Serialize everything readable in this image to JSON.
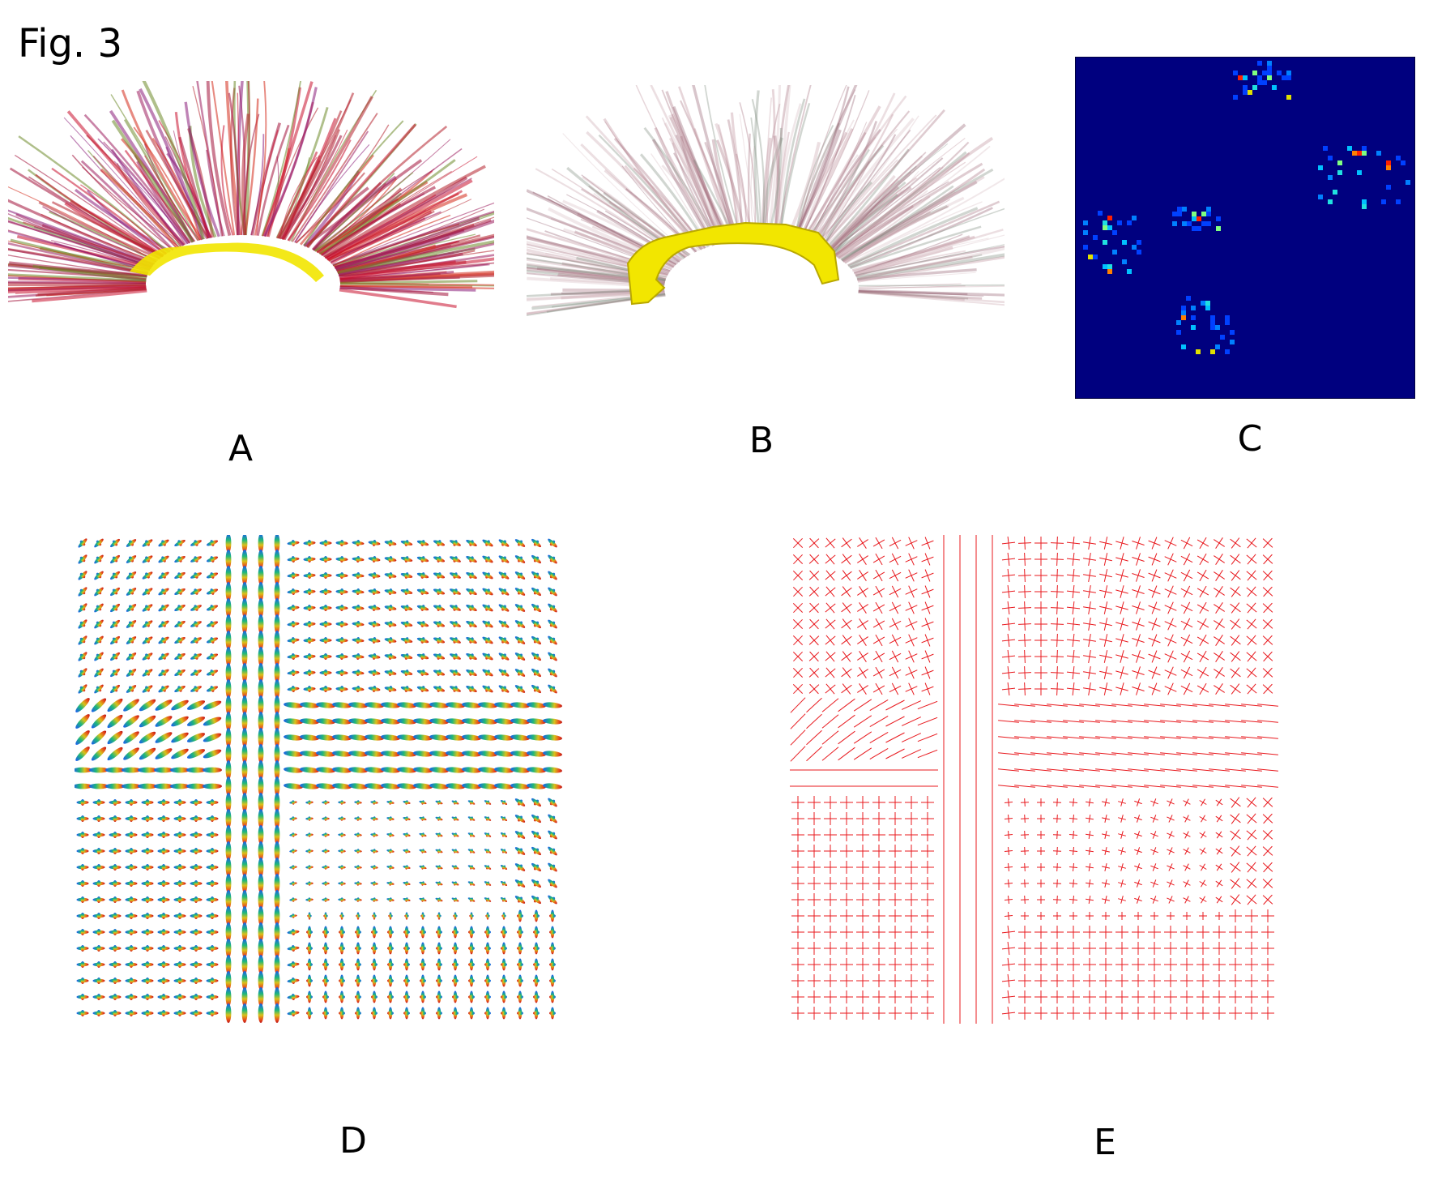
{
  "figure": {
    "title": "Fig. 3",
    "panel_labels": {
      "a": "A",
      "b": "B",
      "c": "C",
      "d": "D",
      "e": "E"
    }
  },
  "colors": {
    "matrix_background": "#00007f",
    "cingulum_highlight": "#f2e600",
    "fiber_red": "#c8102e",
    "peak_red": "#e8191e"
  },
  "panels": [
    {
      "id": "A",
      "content": "whole-brain tractography rendering, sagittal view, direction-colored streamlines"
    },
    {
      "id": "B",
      "content": "tractography rendering with highlighted yellow cingulum bundle"
    },
    {
      "id": "C",
      "content": "sparse connectivity matrix, jet colormap on dark blue background"
    },
    {
      "id": "D",
      "content": "grid of fiber orientation distribution glyphs"
    },
    {
      "id": "E",
      "content": "grid of red fiber orientation peak lines"
    }
  ]
}
